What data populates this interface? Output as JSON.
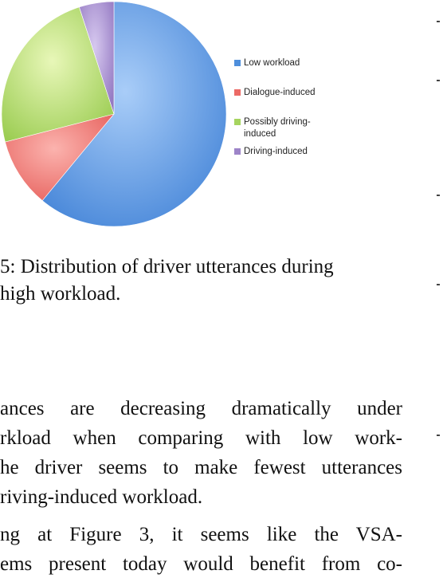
{
  "chart_data": {
    "type": "pie",
    "slices": [
      {
        "label": "Low workload",
        "value": 61,
        "color": "#4e8fdc"
      },
      {
        "label": "Dialogue-induced",
        "value": 10,
        "color": "#ec6a66"
      },
      {
        "label": "Possibly driving-induced",
        "value": 24,
        "color": "#a6d45f"
      },
      {
        "label": "Driving-induced",
        "value": 5,
        "color": "#9d84c8"
      }
    ],
    "legend": {
      "placement": "right",
      "entries": [
        {
          "line1": "Low workload",
          "line2": ""
        },
        {
          "line1": "Dialogue-induced",
          "line2": ""
        },
        {
          "line1": "Possibly driving-",
          "line2": "induced"
        },
        {
          "line1": "Driving-induced",
          "line2": ""
        }
      ]
    }
  },
  "caption": {
    "line1": "5: Distribution of driver utterances during",
    "line2": " high workload."
  },
  "body": {
    "p1": [
      "ances are decreasing dramatically under",
      "rkload when comparing with low work-",
      "he driver seems to make fewest utterances",
      "riving-induced workload."
    ],
    "p2": [
      "ng at Figure 3, it seems like the VSA-",
      "ems present today would benefit from co-"
    ]
  }
}
